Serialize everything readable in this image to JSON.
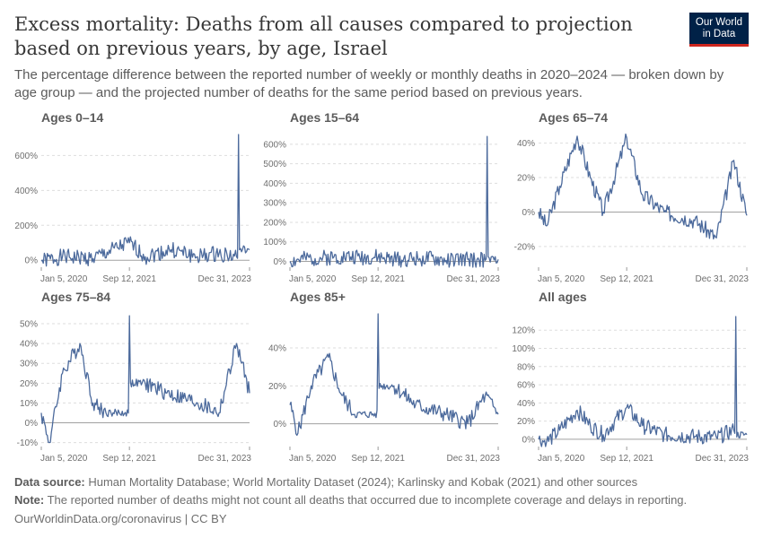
{
  "header": {
    "title": "Excess mortality: Deaths from all causes compared to projection based on previous years, by age, Israel",
    "subtitle": "The percentage difference between the reported number of weekly or monthly deaths in 2020–2024 — broken down by age group — and the projected number of deaths for the same period based on previous years."
  },
  "logo": {
    "line1": "Our World",
    "line2": "in Data"
  },
  "footer": {
    "source_label": "Data source:",
    "source_text": " Human Mortality Database; World Mortality Dataset (2024); Karlinsky and Kobak (2021) and other sources",
    "note_label": "Note:",
    "note_text": " The reported number of deaths might not count all deaths that occurred due to incomplete coverage and delays in reporting.",
    "url": "OurWorldinData.org/coronavirus | CC BY"
  },
  "colors": {
    "line": "#4c6a9c",
    "grid": "#dddddd",
    "zero": "#a1a1a1"
  },
  "chart_data": [
    {
      "type": "line",
      "title": "Ages 0–14",
      "x_ticks": [
        "Jan 5, 2020",
        "Sep 12, 2021",
        "Dec 31, 2023"
      ],
      "y_ticks": [
        "0%",
        "200%",
        "400%",
        "600%"
      ],
      "ylim": [
        -40,
        720
      ],
      "series": [
        {
          "x": [
            "Jan 5, 2020",
            "Jun 2020",
            "Jan 2021",
            "Sep 12, 2021",
            "Jan 2022",
            "Jul 2022",
            "Jan 2023",
            "Jun 2023",
            "Oct 2023",
            "Oct 15, 2023",
            "Dec 31, 2023"
          ],
          "values": [
            -5,
            20,
            10,
            100,
            20,
            60,
            20,
            40,
            20,
            720,
            60
          ]
        }
      ]
    },
    {
      "type": "line",
      "title": "Ages 15–64",
      "x_ticks": [
        "Jan 5, 2020",
        "Sep 12, 2021",
        "Dec 31, 2023"
      ],
      "y_ticks": [
        "0%",
        "100%",
        "200%",
        "300%",
        "400%",
        "500%",
        "600%"
      ],
      "ylim": [
        -30,
        650
      ],
      "series": [
        {
          "x": [
            "Jan 5, 2020",
            "Jun 2020",
            "Jan 2021",
            "Sep 12, 2021",
            "Jan 2022",
            "Jul 2022",
            "Jan 2023",
            "Jun 2023",
            "Oct 2023",
            "Oct 15, 2023",
            "Dec 31, 2023"
          ],
          "values": [
            0,
            15,
            25,
            20,
            10,
            15,
            5,
            10,
            5,
            640,
            10
          ]
        }
      ]
    },
    {
      "type": "line",
      "title": "Ages 65–74",
      "x_ticks": [
        "Jan 5, 2020",
        "Sep 12, 2021",
        "Dec 31, 2023"
      ],
      "y_ticks": [
        "-20%",
        "0%",
        "20%",
        "40%"
      ],
      "ylim": [
        -32,
        45
      ],
      "series": [
        {
          "x": [
            "Jan 5, 2020",
            "Mar 2020",
            "Jun 2020",
            "Oct 2020",
            "Jan 2021",
            "Apr 2021",
            "Sep 12, 2021",
            "Jan 2022",
            "Jun 2022",
            "Jan 2023",
            "Jun 2023",
            "Oct 2023",
            "Dec 31, 2023"
          ],
          "values": [
            0,
            -8,
            15,
            44,
            20,
            0,
            43,
            10,
            0,
            -5,
            -15,
            30,
            -2
          ]
        }
      ]
    },
    {
      "type": "line",
      "title": "Ages 75–84",
      "x_ticks": [
        "Jan 5, 2020",
        "Sep 12, 2021",
        "Dec 31, 2023"
      ],
      "y_ticks": [
        "-10%",
        "0%",
        "10%",
        "20%",
        "30%",
        "40%",
        "50%"
      ],
      "ylim": [
        -12,
        55
      ],
      "series": [
        {
          "x": [
            "Jan 5, 2020",
            "Mar 2020",
            "Jun 2020",
            "Oct 2020",
            "Jan 2021",
            "Apr 2021",
            "Sep 12, 2021",
            "Jan 2022",
            "Jun 2022",
            "Jan 2023",
            "Jun 2023",
            "Oct 2023",
            "Dec 31, 2023"
          ],
          "values": [
            5,
            -10,
            25,
            40,
            10,
            5,
            54,
            20,
            15,
            10,
            5,
            40,
            15
          ]
        }
      ]
    },
    {
      "type": "line",
      "title": "Ages 85+",
      "x_ticks": [
        "Jan 5, 2020",
        "Sep 12, 2021",
        "Dec 31, 2023"
      ],
      "y_ticks": [
        "0%",
        "20%",
        "40%"
      ],
      "ylim": [
        -12,
        58
      ],
      "series": [
        {
          "x": [
            "Jan 5, 2020",
            "Mar 2020",
            "Jun 2020",
            "Oct 2020",
            "Jan 2021",
            "Apr 2021",
            "Sep 12, 2021",
            "Jan 2022",
            "Jun 2022",
            "Jan 2023",
            "Jun 2023",
            "Oct 2023",
            "Dec 31, 2023"
          ],
          "values": [
            10,
            -5,
            20,
            35,
            15,
            5,
            58,
            20,
            10,
            5,
            0,
            15,
            5
          ]
        }
      ]
    },
    {
      "type": "line",
      "title": "All ages",
      "x_ticks": [
        "Jan 5, 2020",
        "Sep 12, 2021",
        "Dec 31, 2023"
      ],
      "y_ticks": [
        "0%",
        "20%",
        "40%",
        "60%",
        "80%",
        "100%",
        "120%"
      ],
      "ylim": [
        -8,
        138
      ],
      "series": [
        {
          "x": [
            "Jan 5, 2020",
            "Mar 2020",
            "Jun 2020",
            "Oct 2020",
            "Jan 2021",
            "Apr 2021",
            "Sep 12, 2021",
            "Jan 2022",
            "Jun 2022",
            "Jan 2023",
            "Jun 2023",
            "Oct 2023",
            "Oct 15, 2023",
            "Dec 31, 2023"
          ],
          "values": [
            0,
            -3,
            10,
            32,
            15,
            5,
            35,
            15,
            5,
            3,
            2,
            10,
            135,
            5
          ]
        }
      ]
    }
  ]
}
